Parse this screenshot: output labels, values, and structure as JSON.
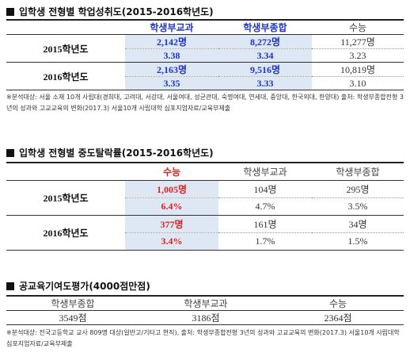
{
  "section1": {
    "title": "입학생 전형별 학업성취도(2015-2016학년도)",
    "headers": [
      "학생부교과",
      "학생부종합",
      "수능"
    ],
    "rows": [
      {
        "year": "2015학년도",
        "counts": [
          "2,142명",
          "8,272명",
          "11,277명"
        ],
        "scores": [
          "3.38",
          "3.34",
          "3.23"
        ]
      },
      {
        "year": "2016학년도",
        "counts": [
          "2,163명",
          "9,516명",
          "10,819명"
        ],
        "scores": [
          "3.35",
          "3.33",
          "3.10"
        ]
      }
    ],
    "note": "※분석대상: 서울 소재 10개 사립대(경희대, 고려대, 서강대, 서울여대, 성균관대, 숙명여대, 연세대, 중앙대, 한국외대, 한양대) 출처: 학생부종합전형 3년의 성과와 고교교육의 변화(2017.3) 서울10개 사립대학 심포지엄자료/교육부제출"
  },
  "section2": {
    "title": "입학생 전형별 중도탈락률(2015-2016학년도)",
    "headers": [
      "수능",
      "학생부교과",
      "학생부종합"
    ],
    "rows": [
      {
        "year": "2015학년도",
        "counts": [
          "1,005명",
          "104명",
          "295명"
        ],
        "rates": [
          "6.4%",
          "4.7%",
          "3.5%"
        ]
      },
      {
        "year": "2016학년도",
        "counts": [
          "377명",
          "161명",
          "34명"
        ],
        "rates": [
          "3.4%",
          "1.7%",
          "1.5%"
        ]
      }
    ]
  },
  "section3": {
    "title": "공교육기여도평가(4000점만점)",
    "headers": [
      "학생부종합",
      "학생부교과",
      "수능"
    ],
    "values": [
      "3549점",
      "3186점",
      "2364점"
    ],
    "note": "※분석대상: 전국고등학교 교사 809명 대상(일반고/기타고 현직), 출처: 학생부종합전형 3년의 성과와 고교교육의 변화(2017.3) 서울10개 사립대학 심포지엄자료/교육부제출"
  },
  "colors": {
    "blue": "#1f35c8",
    "red": "#e02020",
    "shade": "#dde8f4"
  }
}
